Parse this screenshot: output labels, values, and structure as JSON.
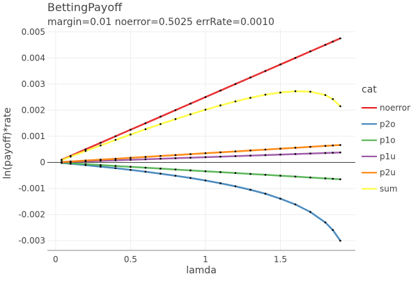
{
  "chart_data": {
    "type": "line",
    "title": "BettingPayoff",
    "subtitle": "margin=0.01 noerror=0.5025 errRate=0.0010",
    "xlabel": "lamda",
    "ylabel": "ln(payoff)*rate",
    "xlim": [
      -0.055,
      2.0
    ],
    "ylim": [
      -0.00337,
      0.0051
    ],
    "xticks": [
      "0",
      "0.5",
      "1",
      "1.5"
    ],
    "xtick_values": [
      0,
      0.5,
      1,
      1.5
    ],
    "yticks": [
      "0.005",
      "0.004",
      "0.003",
      "0.002",
      "0.001",
      "0",
      "-0.001",
      "-0.002",
      "-0.003"
    ],
    "ytick_values": [
      0.005,
      0.004,
      0.003,
      0.002,
      0.001,
      0,
      -0.001,
      -0.002,
      -0.003
    ],
    "grid": true,
    "markers": "black dots",
    "legend": {
      "title": "cat",
      "position": "right"
    },
    "x": [
      0.04,
      0.1,
      0.2,
      0.3,
      0.4,
      0.5,
      0.6,
      0.7,
      0.8,
      0.9,
      1.0,
      1.1,
      1.2,
      1.3,
      1.4,
      1.5,
      1.6,
      1.7,
      1.8,
      1.85,
      1.9
    ],
    "series": [
      {
        "name": "noerror",
        "color": "#e41a1c",
        "values": [
          0.0001,
          0.00025,
          0.0005,
          0.00075,
          0.001,
          0.00125,
          0.0015,
          0.00175,
          0.002,
          0.00225,
          0.0025,
          0.00275,
          0.003,
          0.00325,
          0.0035,
          0.00375,
          0.004,
          0.00425,
          0.0045,
          0.004625,
          0.00475
        ]
      },
      {
        "name": "p2o",
        "color": "#377eb8",
        "values": [
          -2e-05,
          -5.1e-05,
          -0.000105,
          -0.000163,
          -0.000223,
          -0.000288,
          -0.000357,
          -0.000431,
          -0.000511,
          -0.000598,
          -0.000693,
          -0.000799,
          -0.000916,
          -0.00105,
          -0.0012,
          -0.00139,
          -0.00161,
          -0.0019,
          -0.0023,
          -0.00259,
          -0.003
        ]
      },
      {
        "name": "p1o",
        "color": "#4daf4a",
        "values": [
          -1.36e-05,
          -3.4e-05,
          -6.8e-05,
          -0.000102,
          -0.000136,
          -0.00017,
          -0.000204,
          -0.000238,
          -0.000272,
          -0.000306,
          -0.00034,
          -0.000374,
          -0.000408,
          -0.000442,
          -0.000476,
          -0.00051,
          -0.000544,
          -0.000578,
          -0.000612,
          -0.000629,
          -0.000646
        ]
      },
      {
        "name": "p1u",
        "color": "#984ea3",
        "values": [
          8e-06,
          2e-05,
          4e-05,
          6e-05,
          8e-05,
          0.0001,
          0.00012,
          0.00014,
          0.00016,
          0.00018,
          0.0002,
          0.00022,
          0.00024,
          0.00026,
          0.00028,
          0.0003,
          0.00032,
          0.00034,
          0.00036,
          0.00037,
          0.00038
        ]
      },
      {
        "name": "p2u",
        "color": "#ff7f00",
        "values": [
          1.4e-05,
          3.5e-05,
          7e-05,
          0.000105,
          0.00014,
          0.000175,
          0.00021,
          0.000245,
          0.00028,
          0.000315,
          0.00035,
          0.000385,
          0.00042,
          0.000455,
          0.00049,
          0.000525,
          0.00056,
          0.000595,
          0.00063,
          0.000648,
          0.000665
        ]
      },
      {
        "name": "sum",
        "color": "#ffff33",
        "values": [
          8.8e-05,
          0.00022,
          0.000437,
          0.00065,
          0.000861,
          0.001067,
          0.001269,
          0.001466,
          0.001657,
          0.001841,
          0.002017,
          0.002182,
          0.002336,
          0.002473,
          0.002594,
          0.002675,
          0.002726,
          0.002707,
          0.002578,
          0.002424,
          0.00215
        ]
      }
    ]
  }
}
